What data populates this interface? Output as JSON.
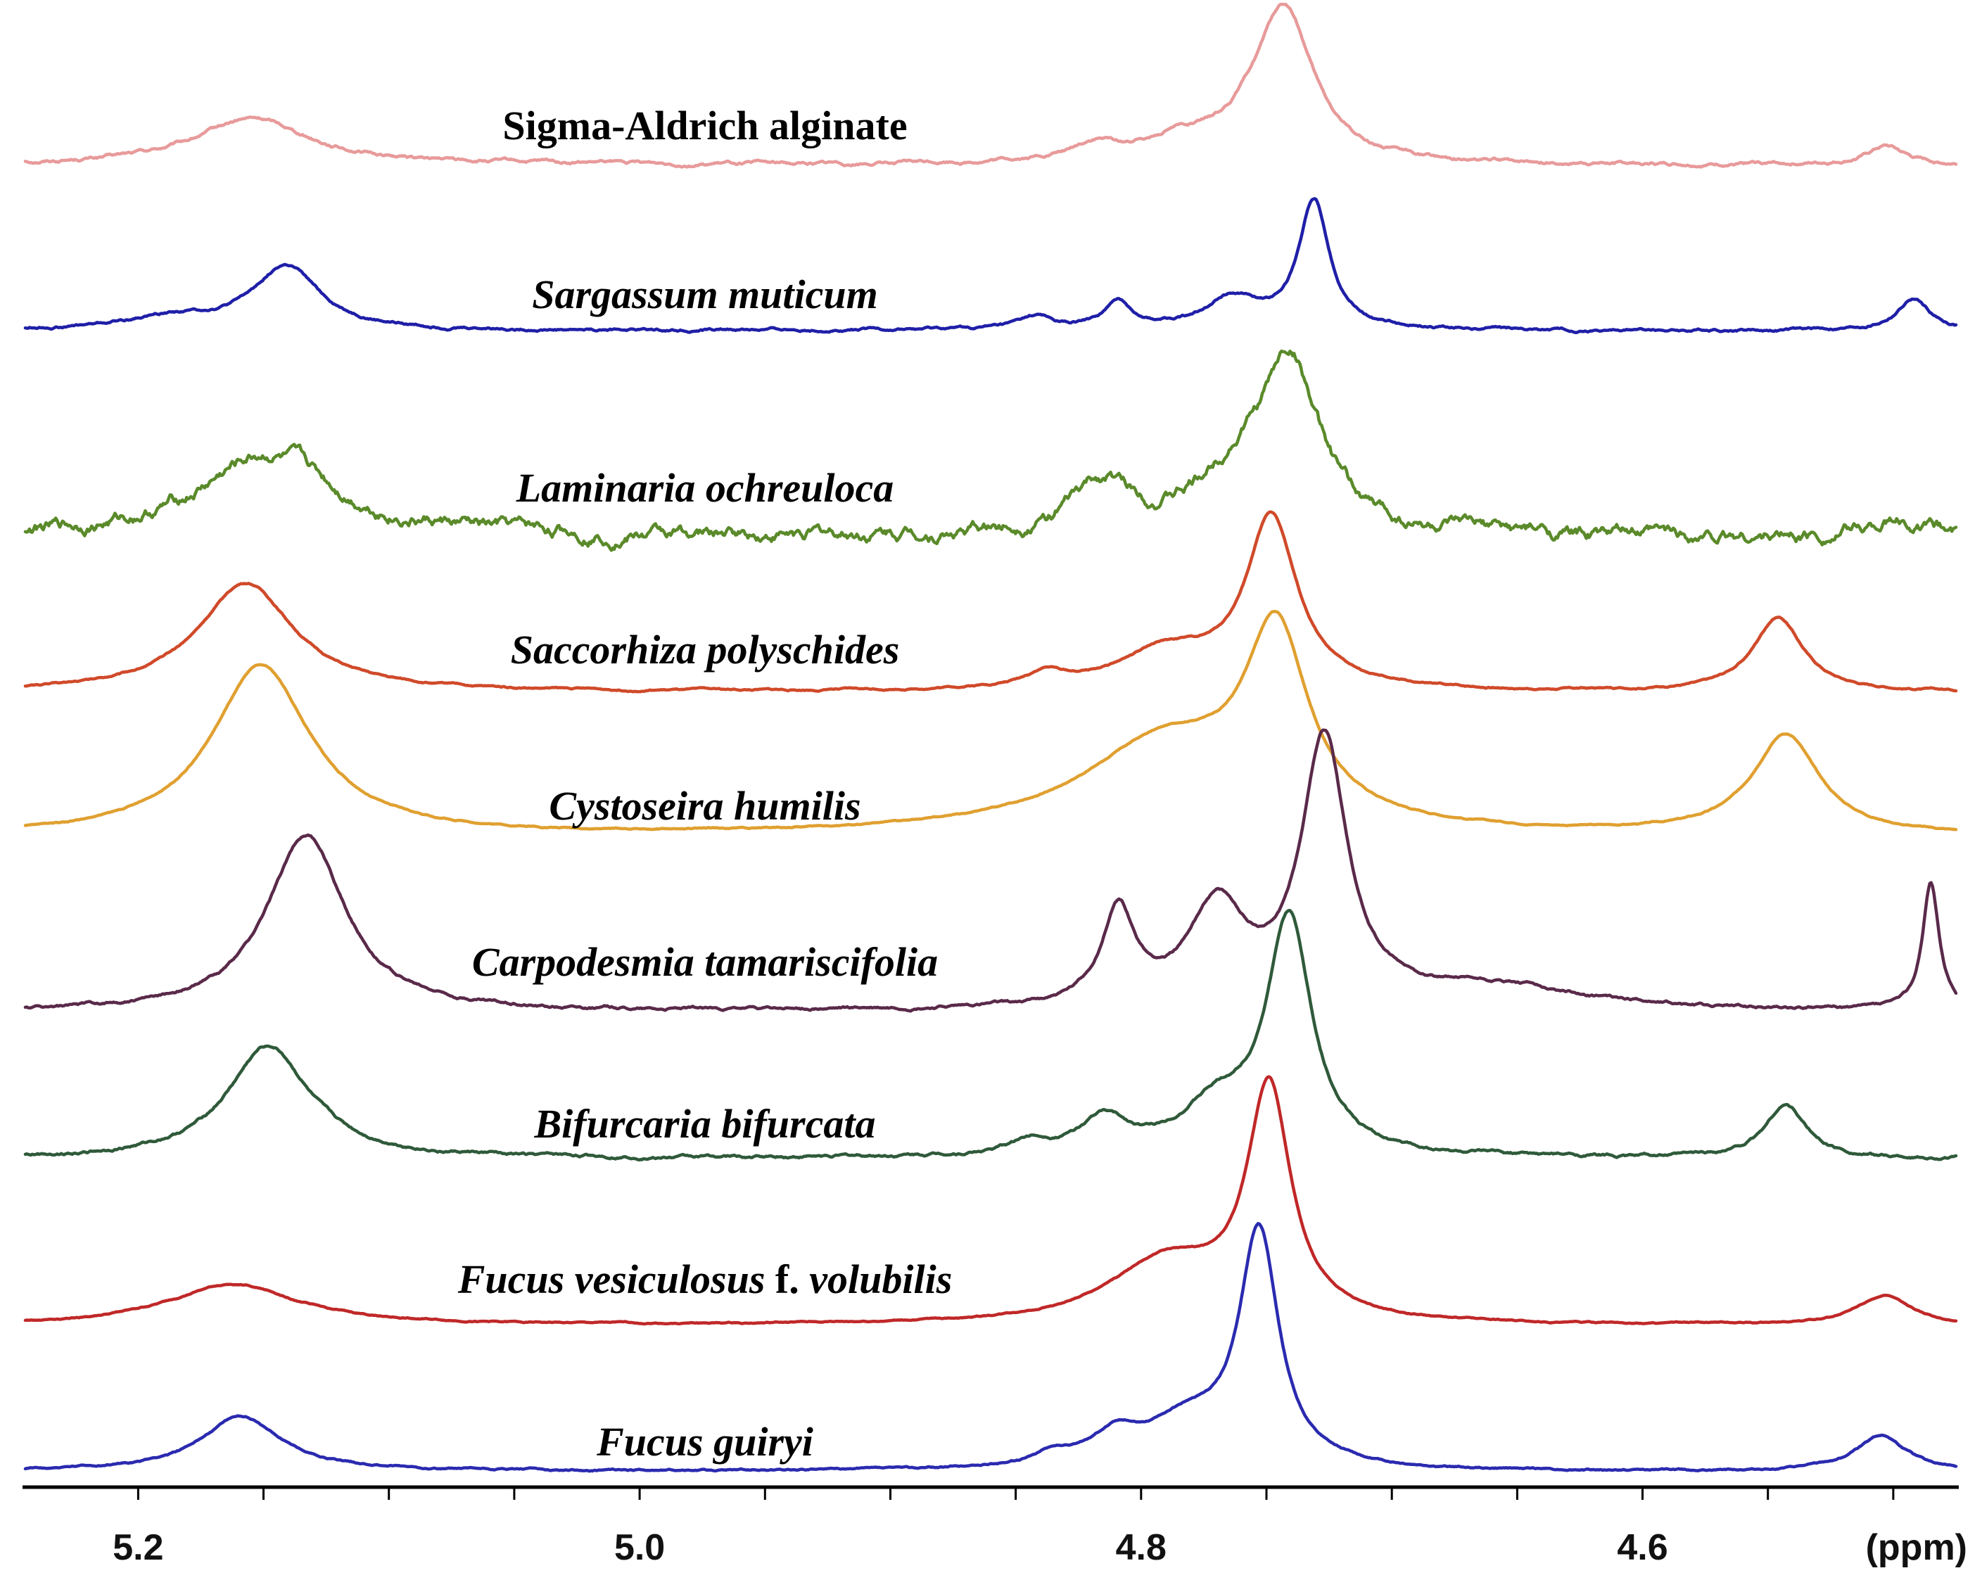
{
  "chart_data": {
    "type": "line",
    "title": "",
    "xlabel": "(ppm)",
    "ylabel": "",
    "xlim": [
      5.245,
      4.475
    ],
    "x_reversed": true,
    "grid": false,
    "legend": "none",
    "x_ticks": [
      {
        "value": 5.2,
        "label": "5.2"
      },
      {
        "value": 5.0,
        "label": "5.0"
      },
      {
        "value": 4.8,
        "label": "4.8"
      },
      {
        "value": 4.6,
        "label": "4.6"
      }
    ],
    "minor_tick_step": 0.05,
    "series": [
      {
        "name": "Sigma-Aldrich alginate",
        "label_parts": [
          {
            "text": "Sigma-Aldrich alginate",
            "italic": false
          }
        ],
        "color": "#e89a9a",
        "baseline": 0.0,
        "peaks": [
          {
            "ppm": 5.154,
            "height": 0.33,
            "width": 0.028
          },
          {
            "ppm": 4.818,
            "height": 0.12,
            "width": 0.012
          },
          {
            "ppm": 4.786,
            "height": 0.14,
            "width": 0.014
          },
          {
            "ppm": 4.754,
            "height": 0.18,
            "width": 0.018
          },
          {
            "ppm": 4.7425,
            "height": 1.0,
            "width": 0.0135
          },
          {
            "ppm": 4.503,
            "height": 0.13,
            "width": 0.009
          }
        ],
        "noise": 0.008
      },
      {
        "name": "Sargassum muticum",
        "label_parts": [
          {
            "text": "Sargassum muticum",
            "italic": true
          }
        ],
        "color": "#1f1fa8",
        "baseline": 0.0,
        "peaks": [
          {
            "ppm": 5.186,
            "height": 0.08,
            "width": 0.022
          },
          {
            "ppm": 5.141,
            "height": 0.42,
            "width": 0.016
          },
          {
            "ppm": 4.842,
            "height": 0.08,
            "width": 0.008
          },
          {
            "ppm": 4.809,
            "height": 0.17,
            "width": 0.007
          },
          {
            "ppm": 4.764,
            "height": 0.21,
            "width": 0.013
          },
          {
            "ppm": 4.731,
            "height": 0.85,
            "width": 0.0075
          },
          {
            "ppm": 4.492,
            "height": 0.21,
            "width": 0.008
          }
        ],
        "noise": 0.006
      },
      {
        "name": "Laminaria ochreuloca",
        "label_parts": [
          {
            "text": "Laminaria ochreuloca",
            "italic": true
          }
        ],
        "color": "#5a8a2a",
        "baseline": 0.0,
        "peaks": [
          {
            "ppm": 5.148,
            "height": 0.53,
            "width": 0.033
          },
          {
            "ppm": 4.815,
            "height": 0.3,
            "width": 0.016
          },
          {
            "ppm": 4.76,
            "height": 0.36,
            "width": 0.02
          },
          {
            "ppm": 4.74,
            "height": 1.0,
            "width": 0.0135
          },
          {
            "ppm": 4.5,
            "height": 0.1,
            "width": 0.015
          }
        ],
        "noise": 0.028
      },
      {
        "name": "Saccorhiza polyschides",
        "label_parts": [
          {
            "text": "Saccorhiza polyschides",
            "italic": true
          }
        ],
        "color": "#d04a2a",
        "baseline": 0.0,
        "peaks": [
          {
            "ppm": 5.157,
            "height": 0.76,
            "width": 0.023
          },
          {
            "ppm": 4.838,
            "height": 0.1,
            "width": 0.009
          },
          {
            "ppm": 4.79,
            "height": 0.26,
            "width": 0.025
          },
          {
            "ppm": 4.748,
            "height": 1.18,
            "width": 0.0125
          },
          {
            "ppm": 4.546,
            "height": 0.52,
            "width": 0.012
          }
        ],
        "noise": 0.004
      },
      {
        "name": "Cystoseira humilis",
        "label_parts": [
          {
            "text": "Cystoseira humilis",
            "italic": true
          }
        ],
        "color": "#e0a030",
        "baseline": 0.0,
        "peaks": [
          {
            "ppm": 5.151,
            "height": 1.15,
            "width": 0.024
          },
          {
            "ppm": 4.79,
            "height": 0.62,
            "width": 0.042
          },
          {
            "ppm": 4.746,
            "height": 1.22,
            "width": 0.015
          },
          {
            "ppm": 4.543,
            "height": 0.68,
            "width": 0.016
          }
        ],
        "noise": 0.003
      },
      {
        "name": "Carpodesmia tamariscifolia",
        "label_parts": [
          {
            "text": "Carpodesmia tamariscifolia",
            "italic": true
          }
        ],
        "color": "#5a2a4a",
        "baseline": 0.0,
        "peaks": [
          {
            "ppm": 5.133,
            "height": 0.9,
            "width": 0.019
          },
          {
            "ppm": 4.809,
            "height": 0.48,
            "width": 0.008
          },
          {
            "ppm": 4.77,
            "height": 0.5,
            "width": 0.014
          },
          {
            "ppm": 4.727,
            "height": 1.35,
            "width": 0.011
          },
          {
            "ppm": 4.66,
            "height": 0.12,
            "width": 0.05
          },
          {
            "ppm": 4.485,
            "height": 0.65,
            "width": 0.004
          }
        ],
        "noise": 0.005
      },
      {
        "name": "Bifurcaria bifurcata",
        "label_parts": [
          {
            "text": "Bifurcaria bifurcata",
            "italic": true
          }
        ],
        "color": "#2f5a3a",
        "baseline": 0.0,
        "peaks": [
          {
            "ppm": 5.148,
            "height": 0.7,
            "width": 0.02
          },
          {
            "ppm": 4.844,
            "height": 0.08,
            "width": 0.01
          },
          {
            "ppm": 4.815,
            "height": 0.22,
            "width": 0.012
          },
          {
            "ppm": 4.77,
            "height": 0.28,
            "width": 0.018
          },
          {
            "ppm": 4.741,
            "height": 1.45,
            "width": 0.011
          },
          {
            "ppm": 4.543,
            "height": 0.33,
            "width": 0.01
          }
        ],
        "noise": 0.006
      },
      {
        "name": "Fucus vesiculosus f. volubilis",
        "label_parts": [
          {
            "text": "Fucus vesiculosus",
            "italic": true
          },
          {
            "text": " f. ",
            "italic": false
          },
          {
            "text": "volubilis",
            "italic": true
          }
        ],
        "color": "#c02828",
        "baseline": 0.0,
        "peaks": [
          {
            "ppm": 5.162,
            "height": 0.28,
            "width": 0.032
          },
          {
            "ppm": 4.79,
            "height": 0.42,
            "width": 0.028
          },
          {
            "ppm": 4.749,
            "height": 1.55,
            "width": 0.0105
          },
          {
            "ppm": 4.504,
            "height": 0.2,
            "width": 0.013
          }
        ],
        "noise": 0.003
      },
      {
        "name": "Fucus guiryi",
        "label_parts": [
          {
            "text": "Fucus guiryi",
            "italic": true
          }
        ],
        "color": "#2a2ab0",
        "baseline": 0.0,
        "peaks": [
          {
            "ppm": 5.159,
            "height": 0.38,
            "width": 0.02
          },
          {
            "ppm": 4.835,
            "height": 0.08,
            "width": 0.01
          },
          {
            "ppm": 4.81,
            "height": 0.2,
            "width": 0.012
          },
          {
            "ppm": 4.782,
            "height": 0.3,
            "width": 0.02
          },
          {
            "ppm": 4.753,
            "height": 1.62,
            "width": 0.0095
          },
          {
            "ppm": 4.505,
            "height": 0.25,
            "width": 0.012
          }
        ],
        "noise": 0.004
      }
    ]
  }
}
